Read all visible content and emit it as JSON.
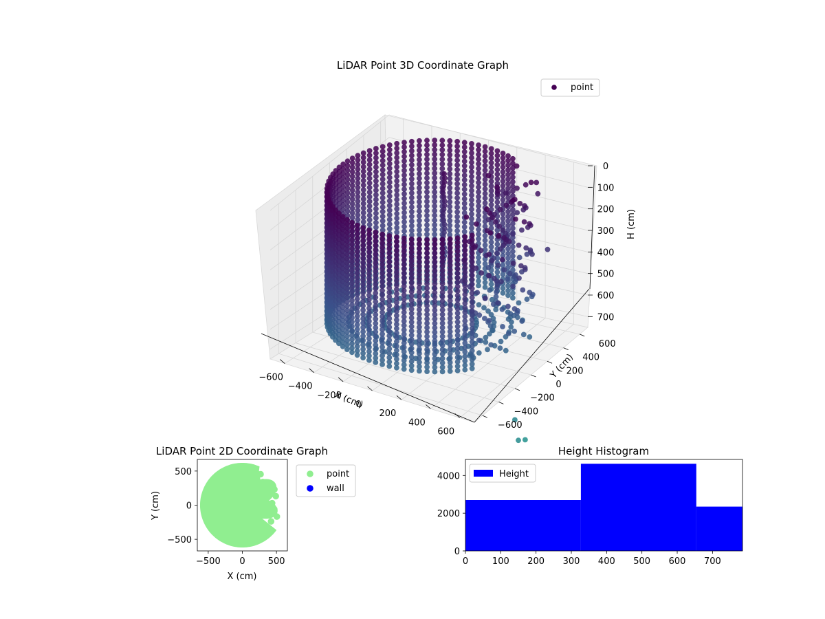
{
  "chart_data": [
    {
      "type": "scatter3d",
      "title": "LiDAR Point 3D Coordinate Graph",
      "xlabel": "X (cm)",
      "ylabel": "Y (cm)",
      "zlabel": "H (cm)",
      "xlim": [
        -700,
        700
      ],
      "ylim": [
        -700,
        700
      ],
      "zlim": [
        0,
        750
      ],
      "z_inverted": true,
      "xticks": [
        -600,
        -400,
        -200,
        0,
        200,
        400,
        600
      ],
      "yticks": [
        -600,
        -400,
        -200,
        0,
        200,
        400,
        600
      ],
      "zticks": [
        0,
        100,
        200,
        300,
        400,
        500,
        600,
        700
      ],
      "legend": "top-right",
      "grid": true,
      "colormap": "viridis",
      "series": [
        {
          "name": "point",
          "color": "#440154",
          "shape": "cylindrical wall",
          "radius": 620,
          "height_range": [
            0,
            640
          ],
          "gap_angle_range_deg": [
            -35,
            65
          ],
          "outliers": [
            {
              "x": 560,
              "y": 100,
              "z": 350
            },
            {
              "x": 520,
              "y": 330,
              "z": 320
            },
            {
              "x": 600,
              "y": 380,
              "z": 300
            },
            {
              "x": 440,
              "y": 540,
              "z": 120
            },
            {
              "x": 470,
              "y": 470,
              "z": 40
            },
            {
              "x": 600,
              "y": -100,
              "z": 540
            },
            {
              "x": 620,
              "y": 30,
              "z": 520
            },
            {
              "x": 700,
              "y": -200,
              "z": 900
            },
            {
              "x": 780,
              "y": -300,
              "z": 950
            },
            {
              "x": 760,
              "y": -180,
              "z": 990
            }
          ]
        }
      ]
    },
    {
      "type": "scatter",
      "title": "LiDAR Point 2D Coordinate Graph",
      "xlabel": "X (cm)",
      "ylabel": "Y (cm)",
      "xlim": [
        -660,
        660
      ],
      "ylim": [
        -670,
        670
      ],
      "xticks": [
        -500,
        0,
        500
      ],
      "yticks": [
        -500,
        0,
        500
      ],
      "legend": "outside-right",
      "series": [
        {
          "name": "point",
          "color": "#90ee90",
          "shape": "filled disc",
          "radius": 620,
          "gap_angle_range_deg": [
            -35,
            65
          ]
        },
        {
          "name": "wall",
          "color": "#0000ff"
        }
      ]
    },
    {
      "type": "bar",
      "title": "Height Histogram",
      "xlim": [
        0,
        785
      ],
      "ylim": [
        0,
        4850
      ],
      "xticks": [
        0,
        100,
        200,
        300,
        400,
        500,
        600,
        700
      ],
      "yticks": [
        0,
        2000,
        4000
      ],
      "legend": "top-left",
      "series": [
        {
          "name": "Height",
          "color": "#0000ff",
          "bins": [
            {
              "from": 0,
              "to": 327,
              "value": 2700
            },
            {
              "from": 327,
              "to": 654,
              "value": 4620
            },
            {
              "from": 654,
              "to": 785,
              "value": 2350
            }
          ]
        }
      ]
    }
  ]
}
